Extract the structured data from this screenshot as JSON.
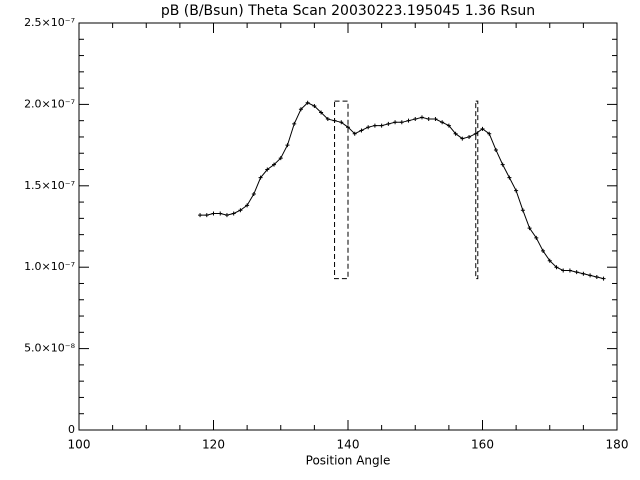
{
  "chart_data": {
    "type": "line",
    "title": "pB (B/Bsun) Theta Scan 20030223.195045 1.36 Rsun",
    "x_label": "Position Angle",
    "xlim": [
      100,
      180
    ],
    "xticks": [
      100,
      120,
      140,
      160,
      180
    ],
    "ylim": [
      0,
      2.5e-07
    ],
    "yticks": [
      0,
      {
        "value": 5e-08,
        "label": "5.0×10⁻⁸"
      },
      {
        "value": 1e-07,
        "label": "1.0×10⁻⁷"
      },
      {
        "value": 1.5e-07,
        "label": "1.5×10⁻⁷"
      },
      {
        "value": 2e-07,
        "label": "2.0×10⁻⁷"
      },
      {
        "value": 2.5e-07,
        "label": "2.5×10⁻⁷"
      }
    ],
    "color": "#000000",
    "x": [
      118,
      119,
      120,
      121,
      122,
      123,
      124,
      125,
      126,
      127,
      128,
      129,
      130,
      131,
      132,
      133,
      134,
      135,
      136,
      137,
      138,
      139,
      140,
      141,
      142,
      143,
      144,
      145,
      146,
      147,
      148,
      149,
      150,
      151,
      152,
      153,
      154,
      155,
      156,
      157,
      158,
      159,
      160,
      161,
      162,
      163,
      164,
      165,
      166,
      167,
      168,
      169,
      170,
      171,
      172,
      173,
      174,
      175,
      176,
      177,
      178
    ],
    "values": [
      1.32e-07,
      1.32e-07,
      1.33e-07,
      1.33e-07,
      1.32e-07,
      1.33e-07,
      1.35e-07,
      1.38e-07,
      1.45e-07,
      1.55e-07,
      1.6e-07,
      1.63e-07,
      1.67e-07,
      1.75e-07,
      1.88e-07,
      1.97e-07,
      2.01e-07,
      1.99e-07,
      1.95e-07,
      1.91e-07,
      1.9e-07,
      1.89e-07,
      1.86e-07,
      1.82e-07,
      1.84e-07,
      1.86e-07,
      1.87e-07,
      1.87e-07,
      1.88e-07,
      1.89e-07,
      1.89e-07,
      1.9e-07,
      1.91e-07,
      1.92e-07,
      1.91e-07,
      1.91e-07,
      1.89e-07,
      1.87e-07,
      1.82e-07,
      1.79e-07,
      1.8e-07,
      1.82e-07,
      1.85e-07,
      1.82e-07,
      1.72e-07,
      1.63e-07,
      1.55e-07,
      1.47e-07,
      1.35e-07,
      1.24e-07,
      1.18e-07,
      1.1e-07,
      1.04e-07,
      1e-07,
      9.8e-08,
      9.8e-08,
      9.7e-08,
      9.6e-08,
      9.5e-08,
      9.4e-08,
      9.3e-08
    ],
    "boxes": [
      {
        "x": [
          138,
          140
        ],
        "y": [
          9.3e-08,
          2.02e-07
        ]
      },
      {
        "x": [
          159,
          159.3
        ],
        "y": [
          9.3e-08,
          2.02e-07
        ]
      }
    ]
  }
}
